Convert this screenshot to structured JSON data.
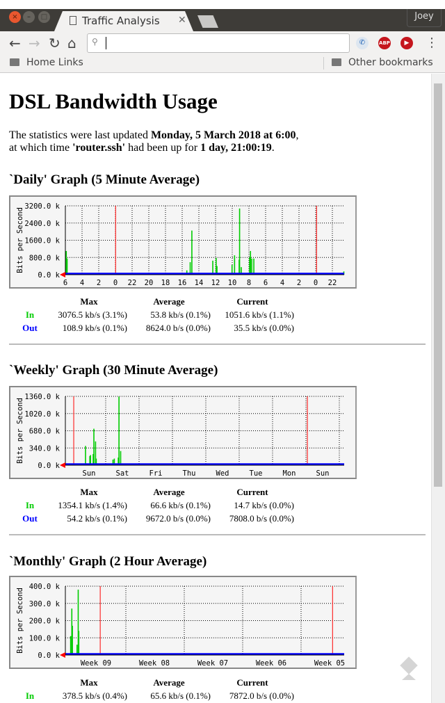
{
  "browser": {
    "tab_title": "Traffic Analysis",
    "user": "Joey",
    "address": "",
    "bookmarks": [
      "Home Links"
    ],
    "other_bookmarks": "Other bookmarks",
    "extensions": [
      "phone-icon",
      "abp-icon",
      "play-icon"
    ],
    "abp_label": "ABP"
  },
  "page": {
    "title": "DSL Bandwidth Usage",
    "line1_prefix": "The statistics were last updated ",
    "line1_date": "Monday, 5 March 2018 at 6:00",
    "line1_suffix": ",",
    "line2_prefix": "at which time ",
    "line2_host": "'router.ssh'",
    "line2_mid": " had been up for ",
    "line2_uptime": "1 day, 21:00:19",
    "line2_suffix": "."
  },
  "stats_headers": {
    "max": "Max",
    "average": "Average",
    "current": "Current",
    "in": "In",
    "out": "Out"
  },
  "colors": {
    "in": "#00cc00",
    "out": "#0000ff",
    "midnight": "#ff0000"
  },
  "chart_data": [
    {
      "type": "area",
      "title": "`Daily' Graph (5 Minute Average)",
      "ylabel": "Bits per Second",
      "ylim": [
        0,
        3200
      ],
      "yticks": [
        "0.0 k",
        "800.0 k",
        "1600.0 k",
        "2400.0 k",
        "3200.0 k"
      ],
      "x_unit": "hours ago",
      "xlim": [
        0,
        33.3
      ],
      "xticks": [
        "6",
        "4",
        "2",
        "0",
        "22",
        "20",
        "18",
        "16",
        "14",
        "12",
        "10",
        "8",
        "6",
        "4",
        "2",
        "0",
        "22"
      ],
      "midnight_lines": [
        6,
        30
      ],
      "in": [
        [
          0.1,
          1100
        ],
        [
          0.2,
          750
        ],
        [
          14.5,
          200
        ],
        [
          14.9,
          580
        ],
        [
          15.1,
          2050
        ],
        [
          17.6,
          650
        ],
        [
          18.0,
          780
        ],
        [
          18.1,
          400
        ],
        [
          19.9,
          450
        ],
        [
          20.2,
          900
        ],
        [
          20.75,
          700
        ],
        [
          20.8,
          3076
        ],
        [
          21.0,
          350
        ],
        [
          22.0,
          800
        ],
        [
          22.1,
          1100
        ],
        [
          22.25,
          750
        ],
        [
          22.5,
          750
        ],
        [
          33.25,
          150
        ]
      ],
      "stats": {
        "in": [
          "3076.5 kb/s (3.1%)",
          "53.8 kb/s (0.1%)",
          "1051.6 kb/s (1.1%)"
        ],
        "out": [
          "108.9 kb/s (0.1%)",
          "8624.0 b/s (0.0%)",
          "35.5 kb/s (0.0%)"
        ]
      }
    },
    {
      "type": "area",
      "title": "`Weekly' Graph (30 Minute Average)",
      "ylabel": "Bits per Second",
      "ylim": [
        0,
        1360
      ],
      "yticks": [
        "0.0 k",
        "340.0 k",
        "680.0 k",
        "1020.0 k",
        "1360.0 k"
      ],
      "x_unit": "days ago",
      "xlim": [
        0,
        8.33
      ],
      "xticks": [
        "Sun",
        "Sat",
        "Fri",
        "Thu",
        "Wed",
        "Tue",
        "Mon",
        "Sun"
      ],
      "midnight_lines": [
        0.25,
        7.23
      ],
      "in": [
        [
          0.6,
          380
        ],
        [
          0.73,
          180
        ],
        [
          0.75,
          200
        ],
        [
          0.83,
          220
        ],
        [
          0.85,
          720
        ],
        [
          0.9,
          470
        ],
        [
          0.92,
          130
        ],
        [
          1.42,
          110
        ],
        [
          1.46,
          130
        ],
        [
          1.58,
          150
        ],
        [
          1.6,
          1354
        ],
        [
          1.65,
          280
        ]
      ],
      "stats": {
        "in": [
          "1354.1 kb/s (1.4%)",
          "66.6 kb/s (0.1%)",
          "14.7 kb/s (0.0%)"
        ],
        "out": [
          "54.2 kb/s (0.1%)",
          "9672.0 b/s (0.0%)",
          "7808.0 b/s (0.0%)"
        ]
      }
    },
    {
      "type": "area",
      "title": "`Monthly' Graph (2 Hour Average)",
      "ylabel": "Bits per Second",
      "ylim": [
        0,
        400
      ],
      "yticks": [
        "0.0 k",
        "100.0 k",
        "200.0 k",
        "300.0 k",
        "400.0 k"
      ],
      "x_unit": "weeks ago",
      "xlim": [
        0,
        4.8
      ],
      "xticks": [
        "Week 09",
        "Week 08",
        "Week 07",
        "Week 06",
        "Week 05"
      ],
      "midnight_lines": [
        0.6,
        4.6
      ],
      "in": [
        [
          0.09,
          110
        ],
        [
          0.11,
          270
        ],
        [
          0.12,
          170
        ],
        [
          0.2,
          60
        ],
        [
          0.22,
          380
        ],
        [
          0.23,
          140
        ]
      ],
      "stats": {
        "in": [
          "378.5 kb/s (0.4%)",
          "65.6 kb/s (0.1%)",
          "7872.0 b/s (0.0%)"
        ],
        "out": [
          "",
          "",
          ""
        ]
      }
    }
  ]
}
